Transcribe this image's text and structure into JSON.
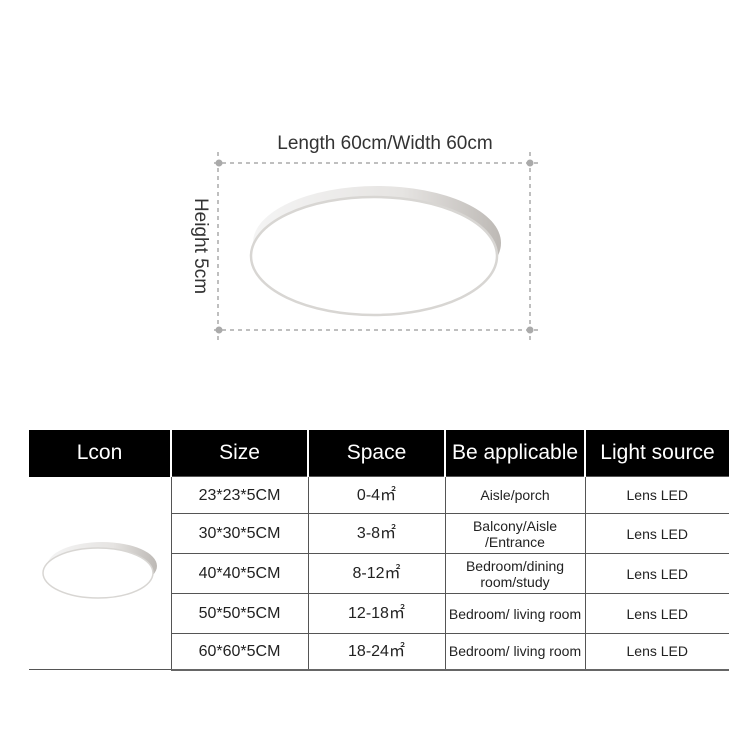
{
  "dimensions": {
    "length_width": "Length 60cm/Width 60cm",
    "height": "Height 5cm"
  },
  "table": {
    "headers": [
      "Lcon",
      "Size",
      "Space",
      "Be applicable",
      "Light source"
    ],
    "rows": [
      {
        "size": "23*23*5CM",
        "space": "0-4㎡",
        "applicable": "Aisle/porch",
        "light": "Lens LED"
      },
      {
        "size": "30*30*5CM",
        "space": "3-8㎡",
        "applicable": "Balcony/Aisle /Entrance",
        "light": "Lens LED"
      },
      {
        "size": "40*40*5CM",
        "space": "8-12㎡",
        "applicable": "Bedroom/dining room/study",
        "light": "Lens LED"
      },
      {
        "size": "50*50*5CM",
        "space": "12-18㎡",
        "applicable": "Bedroom/ living room",
        "light": "Lens LED"
      },
      {
        "size": "60*60*5CM",
        "space": "18-24㎡",
        "applicable": "Bedroom/ living room",
        "light": "Lens LED"
      }
    ]
  }
}
